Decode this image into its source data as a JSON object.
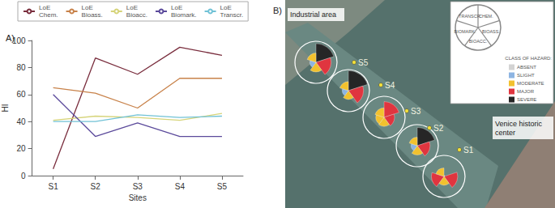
{
  "chart_data": [
    {
      "type": "line",
      "title": "A)",
      "x_label": "Sites",
      "y_label": "HI",
      "categories": [
        "S1",
        "S2",
        "S3",
        "S4",
        "S5"
      ],
      "series": [
        {
          "name": "LoE Chem.",
          "color": "#7a2e3e",
          "values": [
            5,
            87,
            75,
            95,
            89
          ]
        },
        {
          "name": "LoE Bioass.",
          "color": "#c8824a",
          "values": [
            65,
            61,
            50,
            72,
            72
          ]
        },
        {
          "name": "LoE Bioacc.",
          "color": "#d6d47a",
          "values": [
            41,
            44,
            43,
            41,
            46
          ]
        },
        {
          "name": "LoE Biomark.",
          "color": "#5b4a9b",
          "values": [
            60,
            29,
            39,
            29,
            29
          ]
        },
        {
          "name": "LoE Transcr.",
          "color": "#71c2d6",
          "values": [
            40,
            40,
            45,
            43,
            44
          ]
        }
      ],
      "ylim": [
        0,
        100
      ],
      "yticks": [
        0,
        20,
        40,
        60,
        80,
        100
      ],
      "grid": false,
      "legend": "top"
    },
    {
      "type": "rose",
      "title": "B)",
      "legend_title": "CLASS OF HAZARD:",
      "categories": [
        "CHEM.",
        "BIOASS.",
        "BIOACC.",
        "BIOMARK.",
        "TRANSCR."
      ],
      "ylim": [
        0,
        100
      ],
      "tick_labels": false,
      "classes": [
        {
          "name": "ABSENT",
          "color": "#d3d3d3"
        },
        {
          "name": "SLIGHT",
          "color": "#8db4e2"
        },
        {
          "name": "MODERATE",
          "color": "#f2c12e"
        },
        {
          "name": "MAJOR",
          "color": "#e0353f"
        },
        {
          "name": "SEVERE",
          "color": "#262626"
        }
      ],
      "series": [
        {
          "name": "S1",
          "values": [
            5,
            65,
            41,
            60,
            40
          ],
          "classes": [
            "ABSENT",
            "MAJOR",
            "MODERATE",
            "MAJOR",
            "MODERATE"
          ]
        },
        {
          "name": "S2",
          "values": [
            87,
            61,
            44,
            29,
            40
          ],
          "classes": [
            "SEVERE",
            "MAJOR",
            "MODERATE",
            "SLIGHT",
            "MODERATE"
          ]
        },
        {
          "name": "S3",
          "values": [
            75,
            50,
            43,
            39,
            45
          ],
          "classes": [
            "MAJOR",
            "MAJOR",
            "MODERATE",
            "MODERATE",
            "MODERATE"
          ]
        },
        {
          "name": "S4",
          "values": [
            95,
            72,
            41,
            29,
            43
          ],
          "classes": [
            "SEVERE",
            "MAJOR",
            "MODERATE",
            "SLIGHT",
            "MODERATE"
          ]
        },
        {
          "name": "S5",
          "values": [
            89,
            72,
            46,
            29,
            44
          ],
          "classes": [
            "SEVERE",
            "MAJOR",
            "MODERATE",
            "SLIGHT",
            "MODERATE"
          ]
        }
      ],
      "annotations": [
        "Industrial area",
        "Venice historic center"
      ]
    }
  ]
}
